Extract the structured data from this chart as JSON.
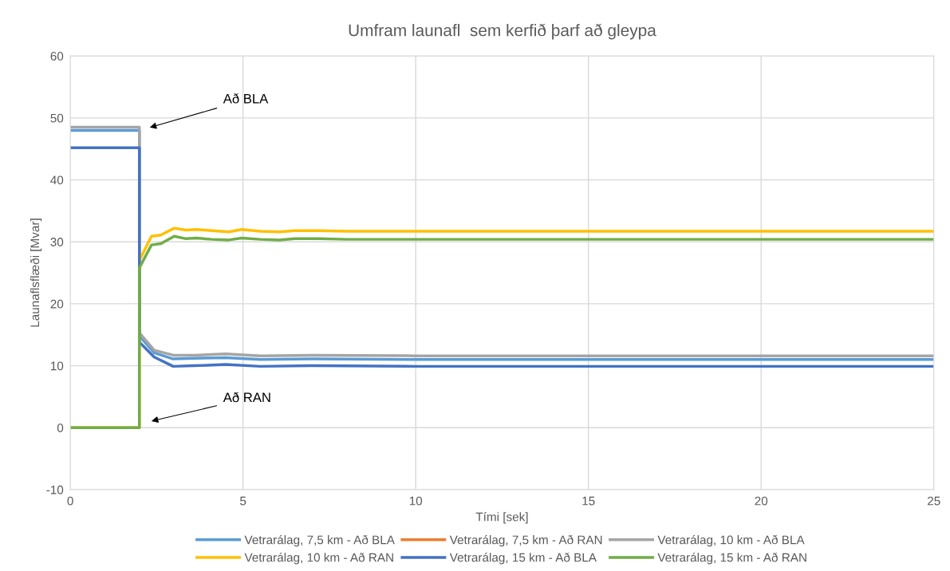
{
  "chart_data": {
    "type": "line",
    "title": "Umfram launafl  sem kerfið þarf að gleypa",
    "xlabel": "Tími [sek]",
    "ylabel": "Launaflsflæði [Mvar]",
    "xlim": [
      0,
      25
    ],
    "xticks": [
      0,
      5,
      10,
      15,
      20,
      25
    ],
    "ylim": [
      -10,
      60
    ],
    "yticks": [
      -10,
      0,
      10,
      20,
      30,
      40,
      50,
      60
    ],
    "grid": true,
    "legend": "bottom",
    "marker": "none",
    "line_style": "solid",
    "annotations": [
      "Að BLA",
      "Að RAN"
    ],
    "series": [
      {
        "name": "Vetrarálag, 7,5 km - Að BLA",
        "color": "#5b9bd5",
        "x": [
          0,
          2,
          2,
          2.43,
          2.98,
          3.6,
          4.5,
          5.5,
          7,
          10,
          15,
          20,
          25
        ],
        "values": [
          48,
          48,
          14.8,
          12.1,
          11.1,
          11.2,
          11.3,
          11.0,
          11.1,
          11.0,
          11.0,
          11.0,
          11.0
        ]
      },
      {
        "name": "Vetrarálag, 7,5 km - Að RAN",
        "color": "#ed7d31"
      },
      {
        "name": "Vetrarálag, 10 km - Að BLA",
        "color": "#a5a5a5",
        "x": [
          0,
          2,
          2,
          2.43,
          2.98,
          3.6,
          4.5,
          5.5,
          7,
          10,
          15,
          20,
          25
        ],
        "values": [
          48.5,
          48.5,
          15.3,
          12.5,
          11.7,
          11.7,
          11.9,
          11.6,
          11.7,
          11.6,
          11.6,
          11.6,
          11.6
        ]
      },
      {
        "name": "Vetrarálag, 10 km - Að RAN",
        "color": "#ffc000",
        "x": [
          0,
          2,
          2,
          2.35,
          2.62,
          3.01,
          3.35,
          3.65,
          4.1,
          4.59,
          4.96,
          5.5,
          6.05,
          6.5,
          7.2,
          8,
          10,
          15,
          20,
          25
        ],
        "values": [
          0,
          0,
          27.0,
          30.9,
          31.1,
          32.2,
          31.9,
          32.0,
          31.8,
          31.6,
          32.0,
          31.7,
          31.6,
          31.8,
          31.8,
          31.7,
          31.7,
          31.7,
          31.7,
          31.7
        ]
      },
      {
        "name": "Vetrarálag, 15 km - Að BLA",
        "color": "#4472c4",
        "x": [
          0,
          2,
          2,
          2.43,
          2.98,
          3.6,
          4.5,
          5.5,
          7,
          10,
          15,
          20,
          25
        ],
        "values": [
          45.2,
          45.2,
          13.8,
          11.4,
          9.9,
          10.0,
          10.2,
          9.9,
          10.0,
          9.9,
          9.9,
          9.9,
          9.9
        ]
      },
      {
        "name": "Vetrarálag, 15 km - Að RAN",
        "color": "#70ad47",
        "x": [
          0,
          2,
          2,
          2.35,
          2.62,
          3.01,
          3.35,
          3.65,
          4.1,
          4.59,
          4.96,
          5.5,
          6.05,
          6.5,
          7.2,
          8,
          10,
          15,
          20,
          25
        ],
        "values": [
          0,
          0,
          25.8,
          29.5,
          29.7,
          30.9,
          30.5,
          30.6,
          30.4,
          30.3,
          30.6,
          30.4,
          30.3,
          30.5,
          30.5,
          30.4,
          30.4,
          30.4,
          30.4,
          30.4
        ]
      }
    ]
  }
}
